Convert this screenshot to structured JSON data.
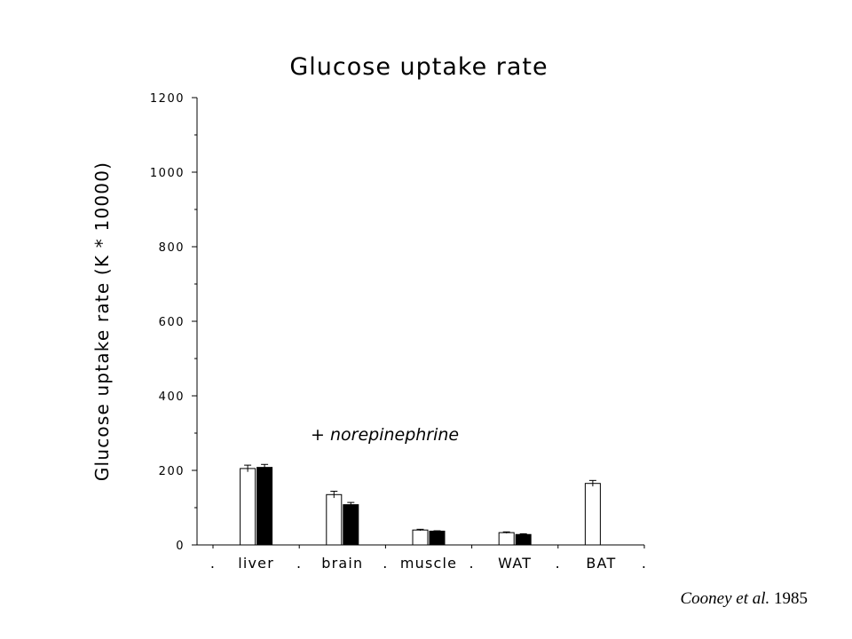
{
  "chart_data": {
    "type": "bar",
    "title": "Glucose uptake rate",
    "ylabel": "Glucose uptake rate  (K * 10000)",
    "xlabel": "",
    "categories": [
      "liver",
      "brain",
      "muscle",
      "WAT",
      "BAT"
    ],
    "separators": [
      ".",
      ".",
      ".",
      ".",
      ".",
      "."
    ],
    "series": [
      {
        "style": "open",
        "values": [
          205,
          135,
          40,
          33,
          165
        ],
        "errors": [
          9,
          9,
          2,
          2,
          8
        ]
      },
      {
        "style": "filled",
        "values": [
          208,
          108,
          37,
          28,
          null
        ],
        "errors": [
          8,
          6,
          1,
          2,
          null
        ]
      }
    ],
    "ylim": [
      0,
      1200
    ],
    "yticks": [
      "0",
      "200",
      "400",
      "600",
      "800",
      "1000",
      "1200"
    ],
    "annotation": "+  norepinephrine",
    "colors": {
      "open": "#ffffff",
      "filled": "#000000",
      "stroke": "#000000"
    }
  },
  "citation": {
    "author": "Cooney et al.",
    "year": "1985"
  }
}
